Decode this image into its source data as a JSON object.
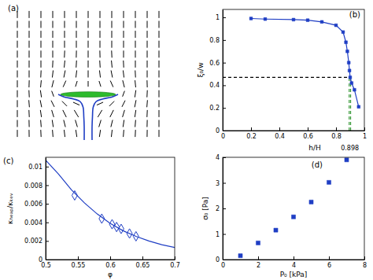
{
  "chart_data": [
    {
      "type": "quiver",
      "title": "(a)",
      "tick_labels": false,
      "color": "#000000",
      "xlim": [
        -1,
        1
      ],
      "ylim": [
        -1,
        1
      ],
      "x": [
        -0.9,
        -0.75,
        -0.6,
        -0.45,
        -0.3,
        -0.15,
        0,
        0.15,
        0.3,
        0.45,
        0.6,
        0.75,
        0.9
      ],
      "y": [
        0.9,
        0.75,
        0.6,
        0.45,
        0.3,
        0.15,
        0,
        -0.15,
        -0.3,
        -0.45,
        -0.6,
        -0.75,
        -0.9
      ],
      "u": [
        [
          0,
          0,
          0,
          0,
          0,
          0,
          0,
          0,
          0,
          0,
          0,
          0,
          0
        ],
        [
          0,
          0,
          0,
          0,
          0,
          0,
          0,
          0,
          0,
          0,
          0,
          0,
          0
        ],
        [
          0,
          0,
          0,
          0,
          0,
          0,
          0,
          0,
          0,
          0,
          0,
          0,
          0
        ],
        [
          0,
          0,
          0,
          0,
          0,
          0,
          0,
          0,
          0,
          0,
          0,
          0,
          0
        ],
        [
          0,
          0,
          0,
          0,
          -0.05,
          -0.03,
          0,
          0.03,
          0.05,
          0,
          0,
          0,
          0
        ],
        [
          0,
          0,
          0,
          -0.05,
          -0.1,
          -0.06,
          0,
          0.06,
          0.1,
          0.05,
          0,
          0,
          0
        ],
        [
          0,
          0,
          -0.05,
          -0.12,
          -0.2,
          -0.12,
          0,
          0.12,
          0.2,
          0.12,
          0.05,
          0,
          0
        ],
        [
          0,
          -0.03,
          -0.1,
          -0.25,
          -0.4,
          -0.25,
          0,
          0.25,
          0.4,
          0.25,
          0.1,
          0.03,
          0
        ],
        [
          0,
          0.05,
          0.15,
          0.3,
          null,
          null,
          null,
          null,
          null,
          -0.3,
          -0.15,
          -0.05,
          0
        ],
        [
          0,
          0.08,
          0.2,
          0.45,
          0.7,
          0.9,
          null,
          -0.9,
          -0.7,
          -0.45,
          -0.2,
          -0.08,
          0
        ],
        [
          0,
          0.05,
          0.15,
          0.3,
          0.5,
          0.6,
          null,
          -0.6,
          -0.5,
          -0.3,
          -0.15,
          -0.05,
          0
        ],
        [
          0,
          0.03,
          0.08,
          0.15,
          0.25,
          0.3,
          null,
          -0.3,
          -0.25,
          -0.15,
          -0.08,
          -0.03,
          0
        ],
        [
          0,
          0.02,
          0.05,
          0.08,
          0.12,
          0.15,
          null,
          -0.15,
          -0.12,
          -0.08,
          -0.05,
          -0.02,
          0
        ]
      ],
      "v": [
        [
          -1,
          -1,
          -1,
          -1,
          -1,
          -1,
          -1,
          -1,
          -1,
          -1,
          -1,
          -1,
          -1
        ],
        [
          -1,
          -1,
          -1,
          -1,
          -1,
          -1,
          -1,
          -1,
          -1,
          -1,
          -1,
          -1,
          -1
        ],
        [
          -1,
          -1,
          -1,
          -1,
          -1,
          -1,
          -1,
          -1,
          -1,
          -1,
          -1,
          -1,
          -1
        ],
        [
          -1,
          -1,
          -1,
          -1,
          -1,
          -1,
          -1,
          -1,
          -1,
          -1,
          -1,
          -1,
          -1
        ],
        [
          -1,
          -1,
          -1,
          -1,
          -1,
          -1,
          -1,
          -1,
          -1,
          -1,
          -1,
          -1,
          -1
        ],
        [
          -1,
          -1,
          -1,
          -1,
          -1,
          -1,
          -1,
          -1,
          -1,
          -1,
          -1,
          -1,
          -1
        ],
        [
          -1,
          -1,
          -1,
          -1,
          -1,
          -1,
          -1,
          -1,
          -1,
          -1,
          -1,
          -1,
          -1
        ],
        [
          -1,
          -1,
          -1,
          -1,
          -0.9,
          -0.8,
          -0.8,
          -0.8,
          -0.9,
          -1,
          -1,
          -1,
          -1
        ],
        [
          -1,
          -1,
          -1,
          -0.8,
          null,
          null,
          null,
          null,
          null,
          -0.8,
          -1,
          -1,
          -1
        ],
        [
          -1,
          -1,
          -1,
          -0.9,
          -0.7,
          -0.4,
          null,
          -0.4,
          -0.7,
          -0.9,
          -1,
          -1,
          -1
        ],
        [
          -1,
          -1,
          -1,
          -1,
          -1,
          -1,
          null,
          -1,
          -1,
          -1,
          -1,
          -1,
          -1
        ],
        [
          -1,
          -1,
          -1,
          -1,
          -1,
          -1,
          null,
          -1,
          -1,
          -1,
          -1,
          -1,
          -1
        ],
        [
          -1,
          -1,
          -1,
          -1,
          -1,
          -1,
          null,
          -1,
          -1,
          -1,
          -1,
          -1,
          -1
        ]
      ],
      "ellipse": {
        "cx": 0,
        "cy": -0.31,
        "rx": 0.35,
        "ry": 0.04,
        "color": "#2dbb2d"
      },
      "series": [
        {
          "color": "#1f3ec4",
          "x": [
            -0.38,
            -0.3,
            -0.18,
            -0.1,
            -0.065,
            -0.055,
            -0.05,
            -0.05
          ],
          "values": [
            -0.31,
            -0.35,
            -0.38,
            -0.42,
            -0.5,
            -0.65,
            -0.8,
            -1
          ]
        },
        {
          "color": "#1f3ec4",
          "x": [
            0.38,
            0.3,
            0.18,
            0.1,
            0.065,
            0.055,
            0.05,
            0.05
          ],
          "values": [
            -0.31,
            -0.35,
            -0.38,
            -0.42,
            -0.5,
            -0.65,
            -0.8,
            -1
          ]
        }
      ]
    },
    {
      "type": "line",
      "title": "(b)",
      "xlabel": "h/H",
      "ylabel": "ξ₀/w",
      "xlim": [
        0,
        1
      ],
      "ylim": [
        0,
        1.07
      ],
      "xticks": [
        0,
        0.2,
        0.4,
        0.6,
        0.8,
        1
      ],
      "yticks": [
        0,
        0.2,
        0.4,
        0.6,
        0.8,
        1
      ],
      "series": [
        {
          "color": "#000000",
          "marker": "none",
          "line_style": "dashed",
          "x": [
            0,
            0.898
          ],
          "values": [
            0.47,
            0.47
          ]
        },
        {
          "color": "#3a9a3a",
          "marker": "none",
          "line_style": "dashed",
          "x": [
            0.893,
            0.893
          ],
          "values": [
            0,
            0.47
          ]
        },
        {
          "color": "#3a9a3a",
          "marker": "none",
          "line_style": "dashed",
          "x": [
            0.903,
            0.903
          ],
          "values": [
            0,
            0.47
          ]
        },
        {
          "color": "#1f3ec4",
          "marker": "square",
          "line_style": "solid",
          "x": [
            0.2,
            0.3,
            0.5,
            0.6,
            0.7,
            0.8,
            0.85,
            0.87,
            0.88,
            0.89,
            0.895,
            0.9,
            0.91,
            0.93,
            0.96
          ],
          "values": [
            0.99,
            0.985,
            0.98,
            0.975,
            0.96,
            0.93,
            0.87,
            0.78,
            0.7,
            0.6,
            0.53,
            0.47,
            0.42,
            0.36,
            0.21
          ]
        }
      ],
      "annotations": [
        {
          "text": "0.898",
          "x": 0.898
        }
      ]
    },
    {
      "type": "line",
      "title": "(c)",
      "xlabel": "φ",
      "ylabel": "κₕₑₐₚ/κₖₑᵥ",
      "xlim": [
        0.5,
        0.7
      ],
      "ylim": [
        0,
        0.011
      ],
      "xticks": [
        0.5,
        0.55,
        0.6,
        0.65,
        0.7
      ],
      "yticks": [
        0,
        0.002,
        0.004,
        0.006,
        0.008,
        0.01
      ],
      "series": [
        {
          "color": "#1f3ec4",
          "marker": "none",
          "line_style": "solid",
          "x": [
            0.5,
            0.52,
            0.54,
            0.56,
            0.58,
            0.6,
            0.62,
            0.64,
            0.66,
            0.68,
            0.7
          ],
          "values": [
            0.0107,
            0.0092,
            0.0075,
            0.0061,
            0.0049,
            0.0039,
            0.0031,
            0.0025,
            0.002,
            0.0016,
            0.0013
          ]
        },
        {
          "type": "scatter",
          "color": "#1f3ec4",
          "marker": "open-diamond",
          "x": [
            0.545,
            0.587,
            0.603,
            0.61,
            0.617,
            0.63,
            0.64
          ],
          "values": [
            0.0069,
            0.0044,
            0.0038,
            0.0035,
            0.0033,
            0.0028,
            0.0025
          ]
        }
      ]
    },
    {
      "type": "scatter",
      "title": "(d)",
      "xlabel": "P₀ [kPa]",
      "ylabel": "σ₀ [Pa]",
      "xlim": [
        0,
        8
      ],
      "ylim": [
        0,
        4
      ],
      "xticks": [
        0,
        2,
        4,
        6,
        8
      ],
      "yticks": [
        0,
        1,
        2,
        3,
        4
      ],
      "series": [
        {
          "color": "#1f3ec4",
          "marker": "square",
          "x": [
            1,
            2,
            3,
            4,
            5,
            6,
            7
          ],
          "values": [
            0.15,
            0.65,
            1.15,
            1.67,
            2.25,
            3.02,
            3.9
          ]
        }
      ]
    }
  ]
}
